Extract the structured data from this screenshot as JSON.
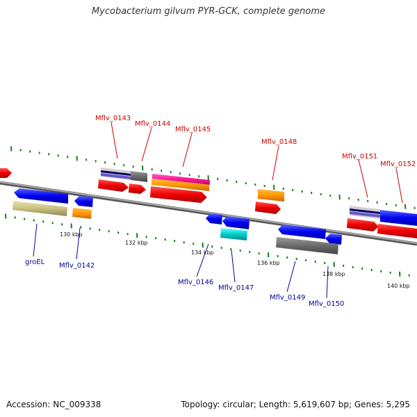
{
  "title": "Mycobacterium gilvum PYR-GCK, complete genome",
  "footer": {
    "accession": "Accession: NC_009338",
    "summary": "Topology: circular; Length: 5,619,607 bp; Genes: 5,295"
  },
  "colors": {
    "label_top": "#cc0000",
    "label_bottom": "#000099",
    "tick": "#1a7a1a",
    "axis": "#777777"
  },
  "axis_labels": [
    "130 kbp",
    "132 kbp",
    "134 kbp",
    "136 kbp",
    "138 kbp",
    "140 kbp"
  ],
  "gene_labels_top": [
    "Mflv_0143",
    "Mflv_0144",
    "Mflv_0145",
    "Mflv_0148",
    "Mflv_0151",
    "Mflv_0152"
  ],
  "gene_labels_bottom": [
    "groEL",
    "Mflv_0142",
    "Mflv_0146",
    "Mflv_0147",
    "Mflv_0149",
    "Mflv_0150"
  ]
}
